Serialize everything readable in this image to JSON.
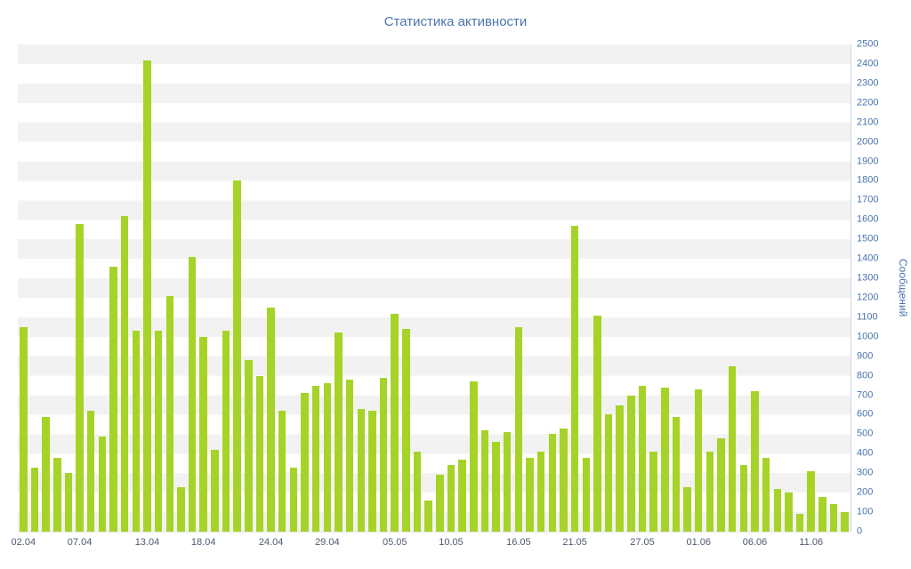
{
  "chart_data": {
    "type": "bar",
    "title": "Статистика активности",
    "ylabel": "Сообщений",
    "ylim": [
      0,
      2500
    ],
    "ytick_step": 100,
    "grid": "horizontal-stripes",
    "legend": "off",
    "bar_color": "#a6d327",
    "stripe_color": "#f2f2f2",
    "title_color": "#4a74ad",
    "ytick_color": "#4a74ad",
    "ylabel_color": "#4a74ad",
    "xtick_color": "#4e5a70",
    "categories": [
      "02.04",
      "03.04",
      "04.04",
      "05.04",
      "06.04",
      "07.04",
      "08.04",
      "09.04",
      "10.04",
      "11.04",
      "12.04",
      "13.04",
      "14.04",
      "15.04",
      "16.04",
      "17.04",
      "18.04",
      "19.04",
      "20.04",
      "21.04",
      "22.04",
      "23.04",
      "24.04",
      "25.04",
      "26.04",
      "27.04",
      "28.04",
      "29.04",
      "30.04",
      "01.05",
      "02.05",
      "03.05",
      "04.05",
      "05.05",
      "06.05",
      "07.05",
      "08.05",
      "09.05",
      "10.05",
      "11.05",
      "12.05",
      "13.05",
      "14.05",
      "15.05",
      "16.05",
      "17.05",
      "18.05",
      "19.05",
      "20.05",
      "21.05",
      "22.05",
      "23.05",
      "24.05",
      "25.05",
      "26.05",
      "27.05",
      "28.05",
      "29.05",
      "30.05",
      "31.05",
      "01.06",
      "02.06",
      "03.06",
      "04.06",
      "05.06",
      "06.06",
      "07.06",
      "08.06",
      "09.06",
      "10.06",
      "11.06",
      "12.06",
      "13.06",
      "14.06"
    ],
    "values": [
      1050,
      330,
      590,
      380,
      300,
      1580,
      620,
      490,
      1360,
      1620,
      1030,
      2420,
      1030,
      1210,
      230,
      1410,
      1000,
      420,
      1030,
      1800,
      880,
      800,
      1150,
      620,
      330,
      710,
      750,
      760,
      1020,
      780,
      630,
      620,
      790,
      1120,
      1040,
      410,
      160,
      290,
      340,
      370,
      770,
      520,
      460,
      510,
      1050,
      380,
      410,
      500,
      530,
      1570,
      380,
      1110,
      600,
      650,
      700,
      750,
      410,
      740,
      590,
      230,
      730,
      410,
      480,
      850,
      340,
      720,
      380,
      220,
      200,
      90,
      310,
      180,
      140,
      100
    ],
    "x_tick_labels": [
      "02.04",
      "07.04",
      "13.04",
      "18.04",
      "24.04",
      "29.04",
      "05.05",
      "10.05",
      "16.05",
      "21.05",
      "27.05",
      "01.06",
      "06.06",
      "11.06"
    ]
  }
}
